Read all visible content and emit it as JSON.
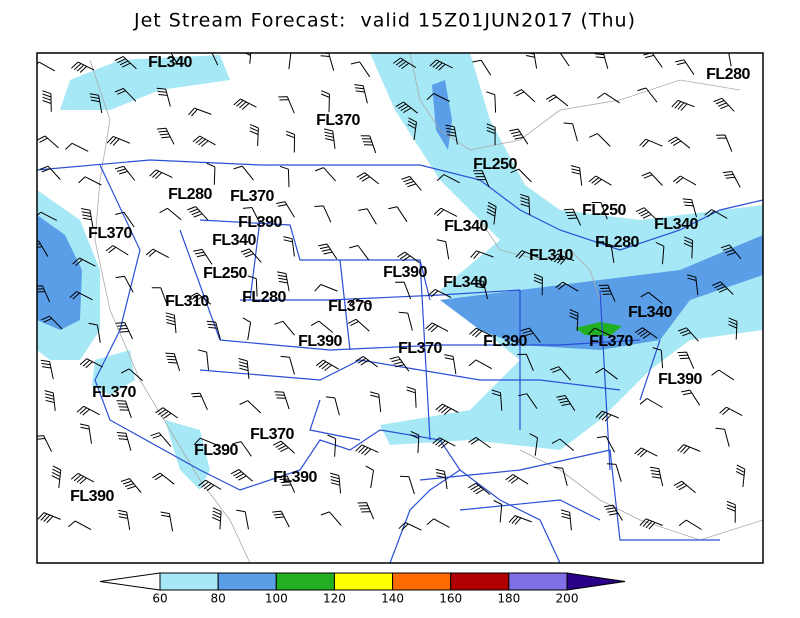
{
  "title": "Jet Stream Forecast:  valid 15Z01JUN2017 (Thu)",
  "flight_level_labels": [
    "FL340",
    "FL280",
    "FL370",
    "FL250",
    "FL280",
    "FL370",
    "FL390",
    "FL370",
    "FL340",
    "FL340",
    "FL250",
    "FL340",
    "FL280",
    "FL310",
    "FL250",
    "FL390",
    "FL340",
    "FL310",
    "FL280",
    "FL370",
    "FL340",
    "FL390",
    "FL370",
    "FL390",
    "FL370",
    "FL390",
    "FL370",
    "FL370",
    "FL390",
    "FL390",
    "FL390"
  ],
  "colorbar": {
    "ticks": [
      60,
      80,
      100,
      120,
      140,
      160,
      180,
      200
    ],
    "colors": [
      "#a6e8f5",
      "#5a9ee8",
      "#22b022",
      "#ffff00",
      "#ff6a00",
      "#b00000",
      "#8070e8"
    ],
    "below_color": "#ffffff",
    "above_color": "#2a0088"
  }
}
